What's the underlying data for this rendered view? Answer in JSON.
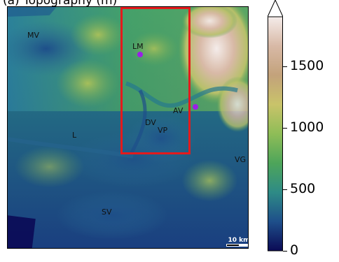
{
  "figure": {
    "panel_title": "(a) Topography (m)"
  },
  "map": {
    "region_labels": [
      {
        "id": "mv",
        "text": "MV"
      },
      {
        "id": "lm",
        "text": "LM"
      },
      {
        "id": "av",
        "text": "AV"
      },
      {
        "id": "dv",
        "text": "DV"
      },
      {
        "id": "vp",
        "text": "VP"
      },
      {
        "id": "l",
        "text": "L"
      },
      {
        "id": "vg",
        "text": "VG"
      },
      {
        "id": "sv",
        "text": "SV"
      }
    ],
    "sites": [
      {
        "id": "lm-site",
        "near": "LM",
        "color": "#9b1fe8"
      },
      {
        "id": "av-site",
        "near": "AV",
        "color": "#9b1fe8"
      }
    ],
    "domain_box_color": "#e41a1c",
    "scale_bar_label": "10 km"
  },
  "colorbar": {
    "colormap": "gist_earth",
    "min": 0,
    "max": 1900,
    "extend": "max",
    "ticks": [
      0,
      500,
      1000,
      1500
    ],
    "colors": [
      "#0b0a55",
      "#1e4f8a",
      "#2e8b86",
      "#4ea55a",
      "#8fbd57",
      "#c9c36a",
      "#c3a27b",
      "#d8b9a6",
      "#f4ecea"
    ]
  }
}
